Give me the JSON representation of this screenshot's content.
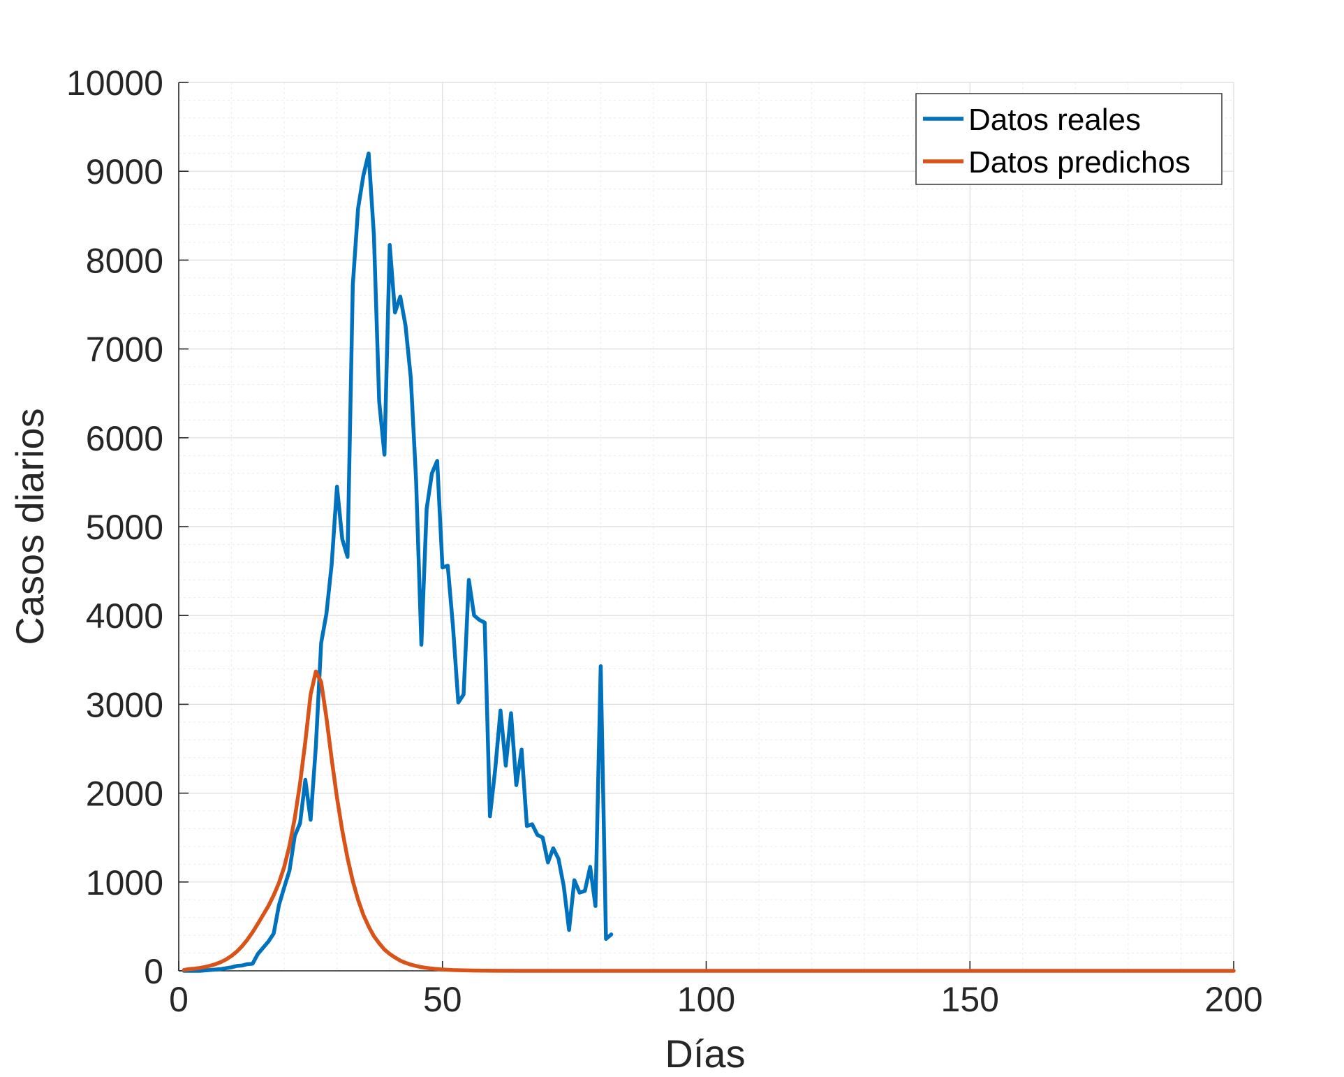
{
  "chart_data": {
    "type": "line",
    "xlabel": "Días",
    "ylabel": "Casos diarios",
    "xlim": [
      0,
      200
    ],
    "ylim": [
      0,
      10000
    ],
    "x_ticks": [
      0,
      50,
      100,
      150,
      200
    ],
    "y_ticks": [
      0,
      1000,
      2000,
      3000,
      4000,
      5000,
      6000,
      7000,
      8000,
      9000,
      10000
    ],
    "grid": true,
    "minor_grid": true,
    "legend_position": "top-right",
    "series": [
      {
        "name": "Datos reales",
        "color": "#0072BD",
        "x": [
          1,
          2,
          3,
          4,
          5,
          6,
          7,
          8,
          9,
          10,
          11,
          12,
          13,
          14,
          15,
          16,
          17,
          18,
          19,
          20,
          21,
          22,
          23,
          24,
          25,
          26,
          27,
          28,
          29,
          30,
          31,
          32,
          33,
          34,
          35,
          36,
          37,
          38,
          39,
          40,
          41,
          42,
          43,
          44,
          45,
          46,
          47,
          48,
          49,
          50,
          51,
          52,
          53,
          54,
          55,
          56,
          57,
          58,
          59,
          60,
          61,
          62,
          63,
          64,
          65,
          66,
          67,
          68,
          69,
          70,
          71,
          72,
          73,
          74,
          75,
          76,
          77,
          78,
          79,
          80,
          81,
          82
        ],
        "values": [
          0,
          0,
          0,
          0,
          5,
          10,
          15,
          20,
          30,
          40,
          55,
          60,
          75,
          80,
          190,
          260,
          330,
          420,
          740,
          940,
          1130,
          1520,
          1660,
          2150,
          1700,
          2530,
          3690,
          4020,
          4580,
          5450,
          4860,
          4660,
          7720,
          8580,
          8950,
          9200,
          8280,
          6410,
          5810,
          8170,
          7410,
          7590,
          7260,
          6670,
          5520,
          3670,
          5200,
          5600,
          5740,
          4540,
          4560,
          3870,
          3020,
          3110,
          4400,
          4000,
          3950,
          3920,
          1740,
          2270,
          2930,
          2310,
          2900,
          2090,
          2490,
          1630,
          1650,
          1530,
          1500,
          1220,
          1380,
          1260,
          950,
          460,
          1020,
          880,
          900,
          1170,
          730,
          3430,
          360,
          410
        ]
      },
      {
        "name": "Datos predichos",
        "color": "#D95319",
        "x": [
          1,
          2,
          3,
          4,
          5,
          6,
          7,
          8,
          9,
          10,
          11,
          12,
          13,
          14,
          15,
          16,
          17,
          18,
          19,
          20,
          21,
          22,
          23,
          24,
          25,
          26,
          27,
          28,
          29,
          30,
          31,
          32,
          33,
          34,
          35,
          36,
          37,
          38,
          39,
          40,
          41,
          42,
          43,
          44,
          45,
          46,
          47,
          48,
          49,
          50,
          52,
          54,
          56,
          58,
          60,
          65,
          70,
          80,
          100,
          150,
          200
        ],
        "values": [
          10,
          20,
          25,
          33,
          44,
          58,
          76,
          99,
          129,
          168,
          217,
          277,
          350,
          435,
          530,
          630,
          730,
          850,
          990,
          1170,
          1410,
          1720,
          2110,
          2580,
          3110,
          3370,
          3250,
          2850,
          2380,
          1950,
          1580,
          1270,
          1010,
          800,
          630,
          500,
          390,
          310,
          240,
          190,
          150,
          115,
          90,
          70,
          55,
          42,
          33,
          26,
          20,
          15,
          9,
          6,
          3,
          2,
          1,
          0,
          0,
          0,
          0,
          0,
          0
        ]
      }
    ]
  }
}
